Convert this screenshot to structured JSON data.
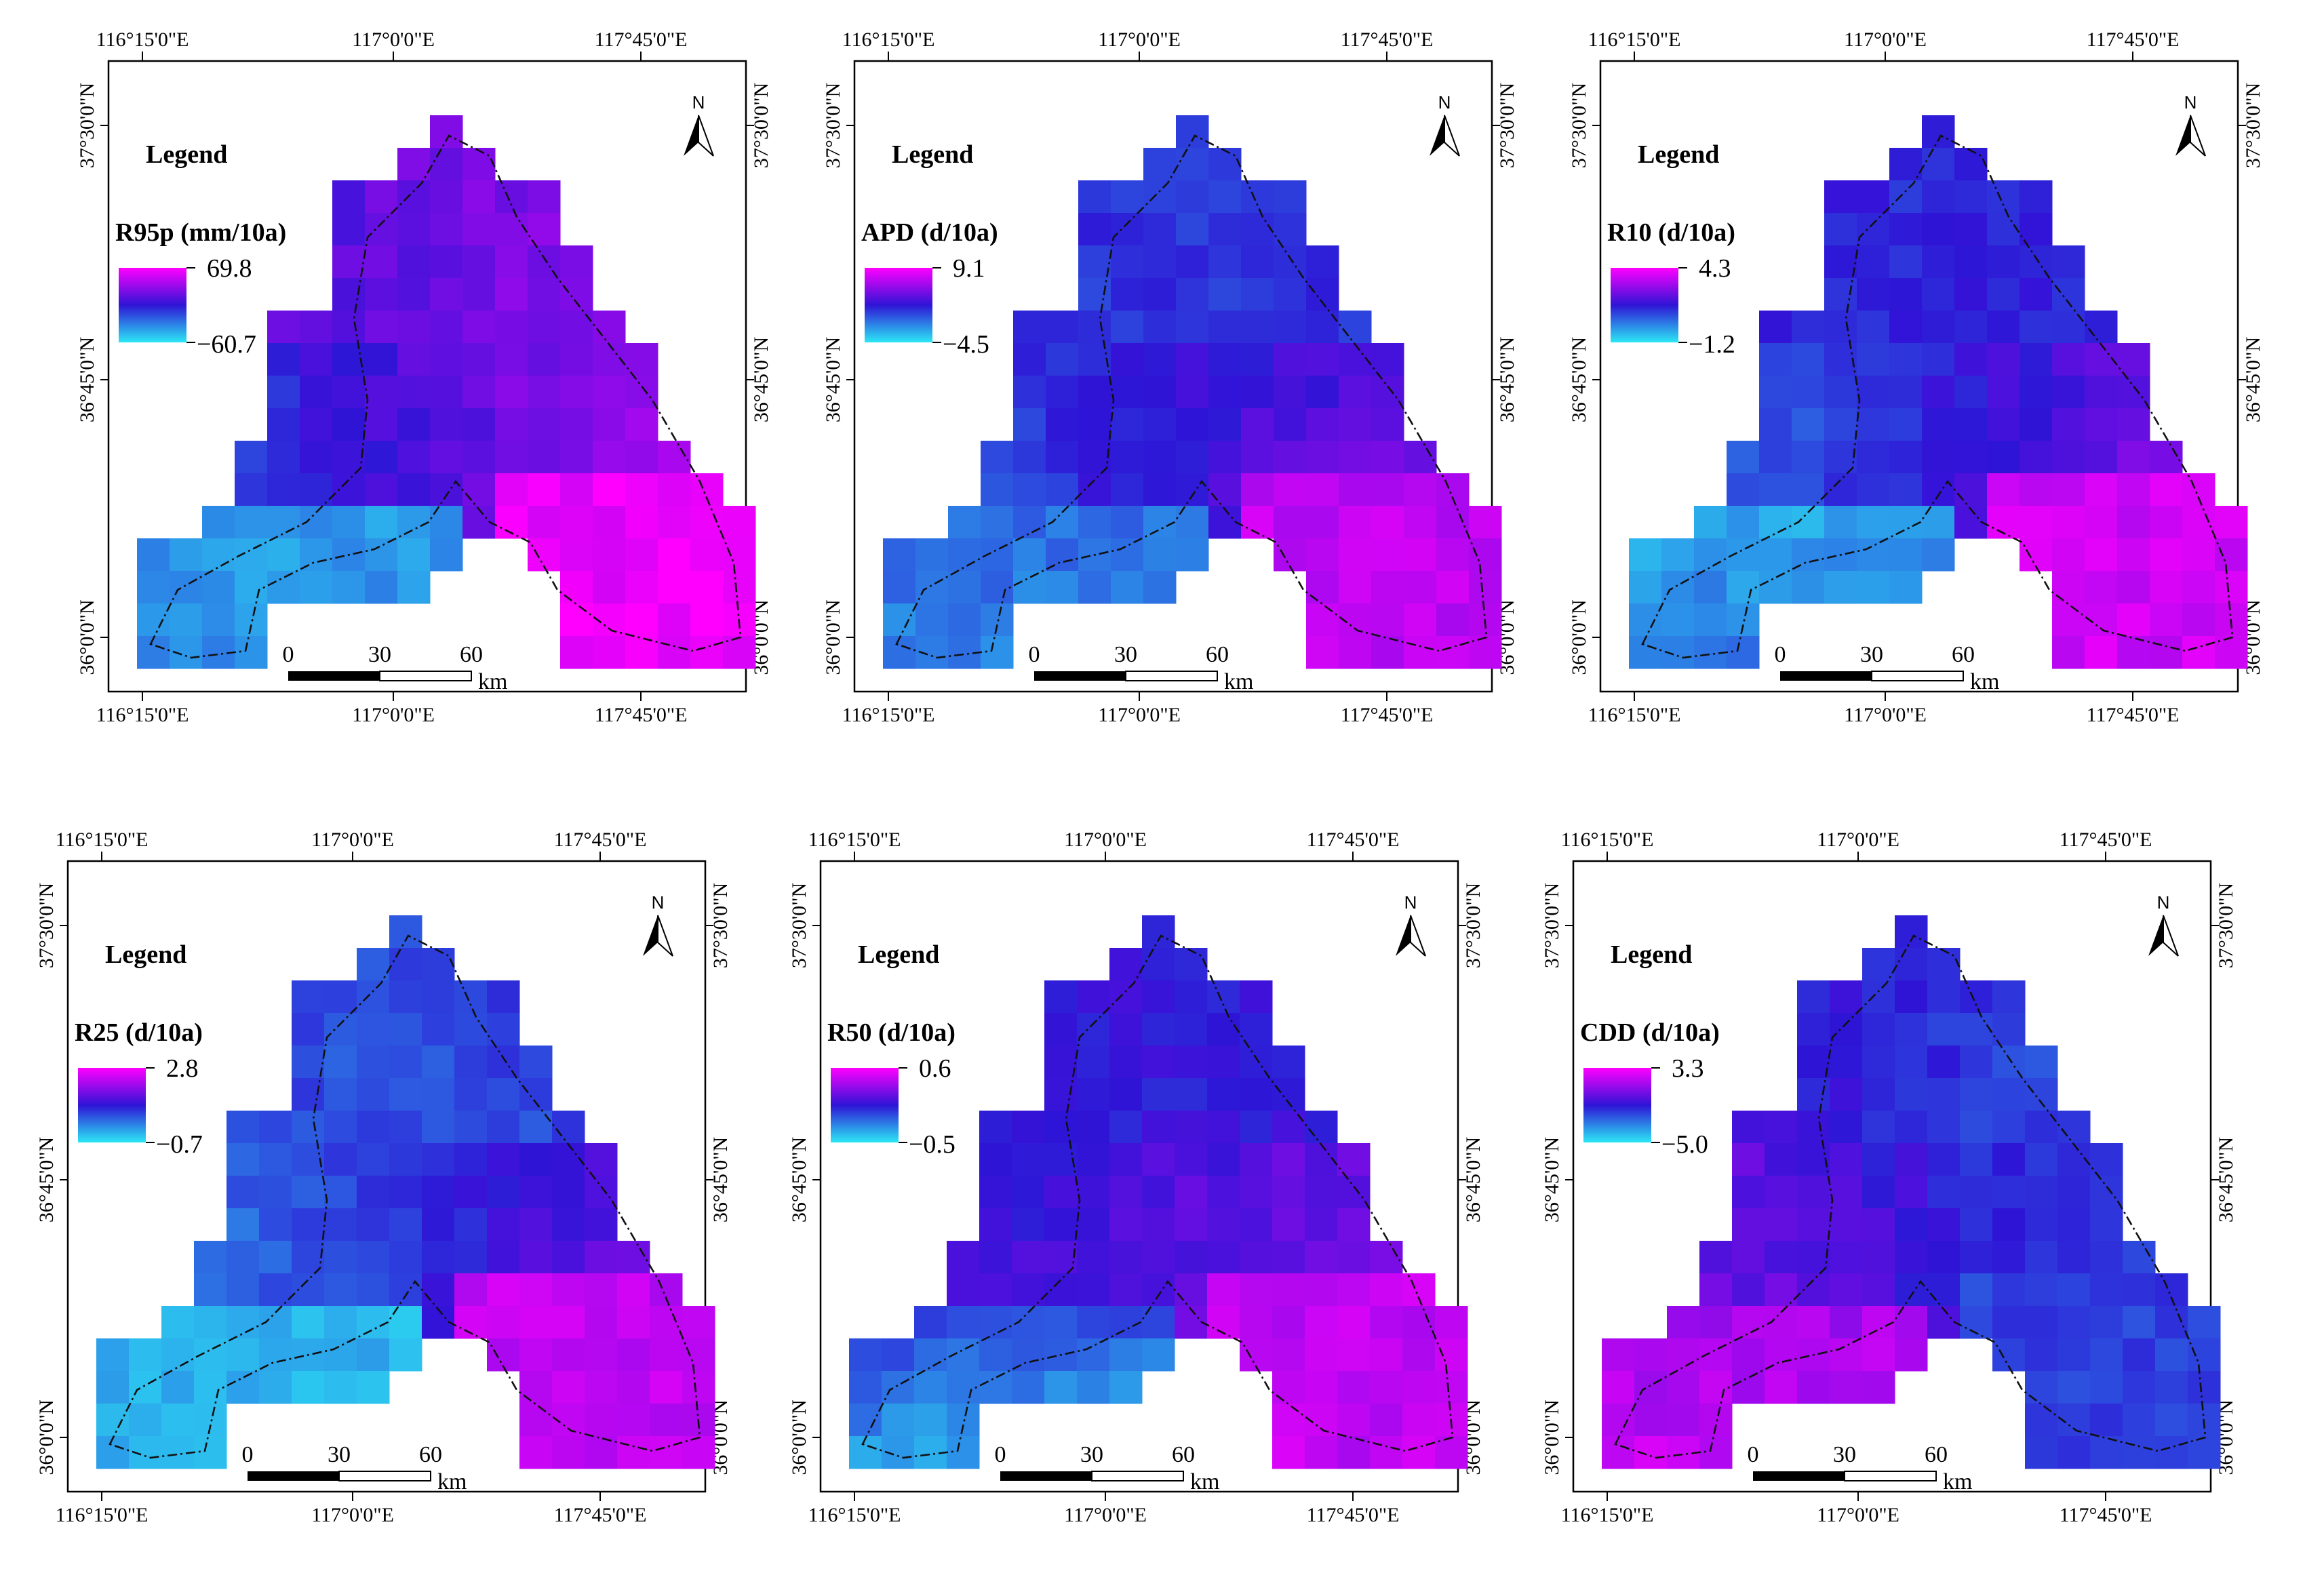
{
  "figure": {
    "common": {
      "top_lon_labels": [
        "116°15'0\"E",
        "117°0'0\"E",
        "117°45'0\"E"
      ],
      "bottom_lon_labels": [
        "116°15'0\"E",
        "117°0'0\"E",
        "117°45'0\"E"
      ],
      "lat_labels": [
        "37°30'0\"N",
        "36°45'0\"N",
        "36°0'0\"N"
      ],
      "legend_title": "Legend",
      "scale_labels": [
        "0",
        "30",
        "60"
      ],
      "scale_unit": "km",
      "north_label": "N"
    },
    "colors": {
      "high": "#ff00ff",
      "mid": "#2e14d6",
      "low": "#2be8f4",
      "frame": "#000000",
      "boundary": "#111111"
    },
    "panels": [
      {
        "id": "r95p",
        "title": "R95p (mm/10a)",
        "max": "69.8",
        "min": "−60.7",
        "gradient": {
          "west": 0.18,
          "south": 0.2,
          "ne": 0.75,
          "se_lobe": 0.95,
          "nw": 0.55
        }
      },
      {
        "id": "apd",
        "title": "APD (d/10a)",
        "max": "9.1",
        "min": "−4.5",
        "gradient": {
          "west": 0.3,
          "south": 0.25,
          "ne": 0.45,
          "se_lobe": 0.85,
          "nw": 0.42
        }
      },
      {
        "id": "r10",
        "title": "R10 (d/10a)",
        "max": "4.3",
        "min": "−1.2",
        "gradient": {
          "west": 0.12,
          "south": 0.25,
          "ne": 0.48,
          "se_lobe": 0.88,
          "nw": 0.45
        }
      },
      {
        "id": "r25",
        "title": "R25 (d/10a)",
        "max": "2.8",
        "min": "−0.7",
        "gradient": {
          "west": 0.1,
          "south": 0.15,
          "ne": 0.4,
          "se_lobe": 0.85,
          "nw": 0.35
        }
      },
      {
        "id": "r50",
        "title": "R50 (d/10a)",
        "max": "0.6",
        "min": "−0.5",
        "gradient": {
          "west": 0.45,
          "south": 0.18,
          "ne": 0.5,
          "se_lobe": 0.85,
          "nw": 0.5
        }
      },
      {
        "id": "cdd",
        "title": "CDD (d/10a)",
        "max": "3.3",
        "min": "−5.0",
        "gradient": {
          "west": 0.75,
          "south": 0.85,
          "ne": 0.3,
          "se_lobe": 0.4,
          "nw": 0.6
        }
      }
    ]
  }
}
